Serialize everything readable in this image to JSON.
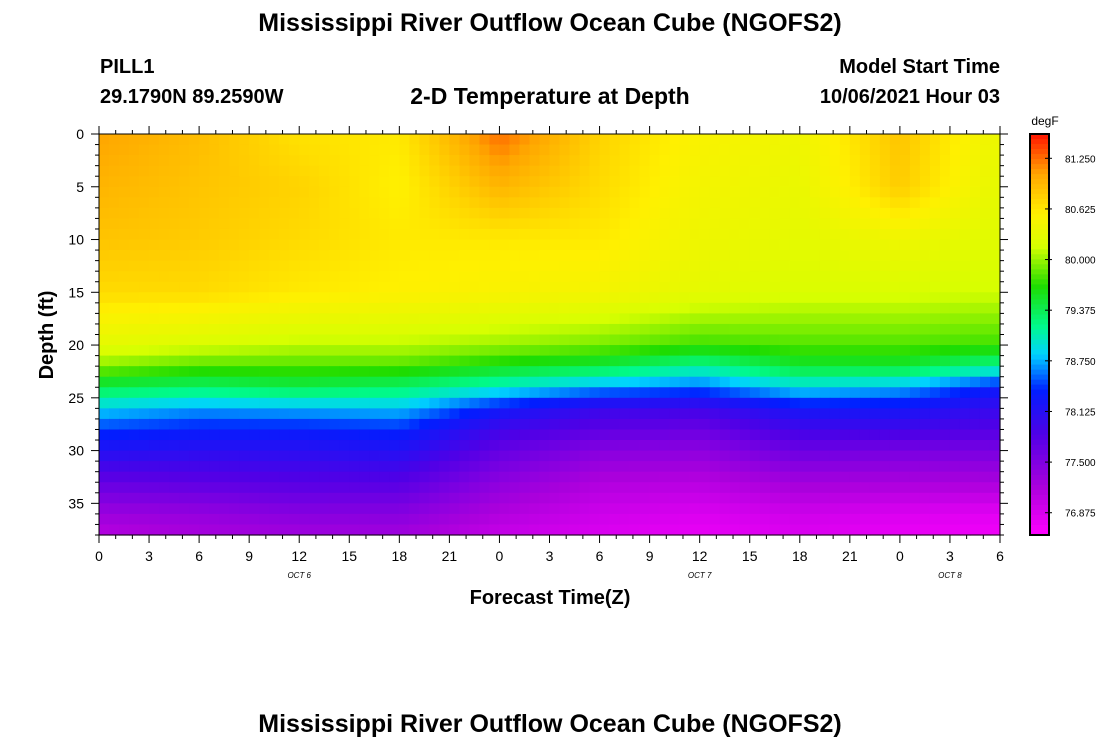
{
  "header": {
    "title": "Mississippi River Outflow Ocean Cube (NGOFS2)",
    "station": "PILL1",
    "coords": "29.1790N  89.2590W",
    "subtitle": "2-D Temperature at Depth",
    "model_label": "Model Start Time",
    "model_time": "10/06/2021 Hour 03"
  },
  "footer": {
    "title": "Mississippi River Outflow Ocean Cube (NGOFS2)"
  },
  "chart_data": {
    "type": "heatmap",
    "title": "2-D Temperature at Depth",
    "xlabel": "Forecast Time(Z)",
    "ylabel": "Depth (ft)",
    "x_tick_labels": [
      "0",
      "3",
      "6",
      "9",
      "12",
      "15",
      "18",
      "21",
      "0",
      "3",
      "6",
      "9",
      "12",
      "15",
      "18",
      "21",
      "0",
      "3",
      "6"
    ],
    "x_range_hours": [
      0,
      54
    ],
    "date_labels": [
      {
        "text": "OCT 6",
        "hour": 12
      },
      {
        "text": "OCT 7",
        "hour": 36
      },
      {
        "text": "OCT 8",
        "hour": 51
      }
    ],
    "y_ticks": [
      0,
      5,
      10,
      15,
      20,
      25,
      30,
      35
    ],
    "y_range": [
      38,
      0
    ],
    "colorbar": {
      "unit": "degF",
      "ticks": [
        "81.250",
        "80.625",
        "80.000",
        "79.375",
        "78.750",
        "78.125",
        "77.500",
        "76.875"
      ],
      "range": [
        76.6,
        81.55
      ]
    },
    "hours": [
      0,
      6,
      12,
      18,
      24,
      30,
      36,
      42,
      48,
      54
    ],
    "depths": [
      0,
      5,
      10,
      15,
      20,
      22,
      24,
      26,
      28,
      30,
      33,
      36,
      38
    ],
    "values": [
      [
        81.05,
        80.9,
        80.65,
        80.6,
        81.25,
        80.75,
        80.5,
        80.4,
        80.85,
        80.35
      ],
      [
        80.95,
        80.85,
        80.75,
        80.55,
        80.95,
        80.7,
        80.45,
        80.35,
        80.8,
        80.3
      ],
      [
        80.85,
        80.8,
        80.7,
        80.6,
        80.6,
        80.6,
        80.4,
        80.3,
        80.4,
        80.25
      ],
      [
        80.7,
        80.7,
        80.6,
        80.55,
        80.5,
        80.45,
        80.3,
        80.2,
        80.2,
        80.15
      ],
      [
        80.3,
        80.2,
        80.1,
        80.1,
        80.0,
        79.9,
        79.75,
        79.8,
        79.8,
        79.75
      ],
      [
        79.95,
        79.8,
        79.8,
        79.8,
        79.6,
        79.45,
        79.15,
        79.5,
        79.5,
        79.15
      ],
      [
        79.4,
        79.3,
        79.4,
        79.3,
        79.0,
        78.7,
        78.55,
        78.9,
        78.75,
        78.3
      ],
      [
        78.85,
        78.7,
        78.75,
        78.8,
        78.3,
        78.0,
        77.95,
        78.25,
        78.25,
        78.0
      ],
      [
        78.45,
        78.35,
        78.35,
        78.4,
        77.95,
        77.75,
        77.65,
        77.95,
        77.95,
        77.8
      ],
      [
        78.15,
        78.1,
        78.1,
        78.15,
        77.7,
        77.45,
        77.4,
        77.65,
        77.55,
        77.55
      ],
      [
        77.7,
        77.75,
        77.8,
        77.8,
        77.4,
        77.15,
        77.1,
        77.25,
        77.2,
        77.2
      ],
      [
        77.3,
        77.35,
        77.45,
        77.45,
        77.15,
        76.95,
        76.85,
        76.95,
        76.85,
        76.8
      ],
      [
        77.1,
        77.2,
        77.25,
        77.25,
        77.0,
        76.85,
        76.75,
        76.85,
        76.75,
        76.7
      ]
    ]
  }
}
